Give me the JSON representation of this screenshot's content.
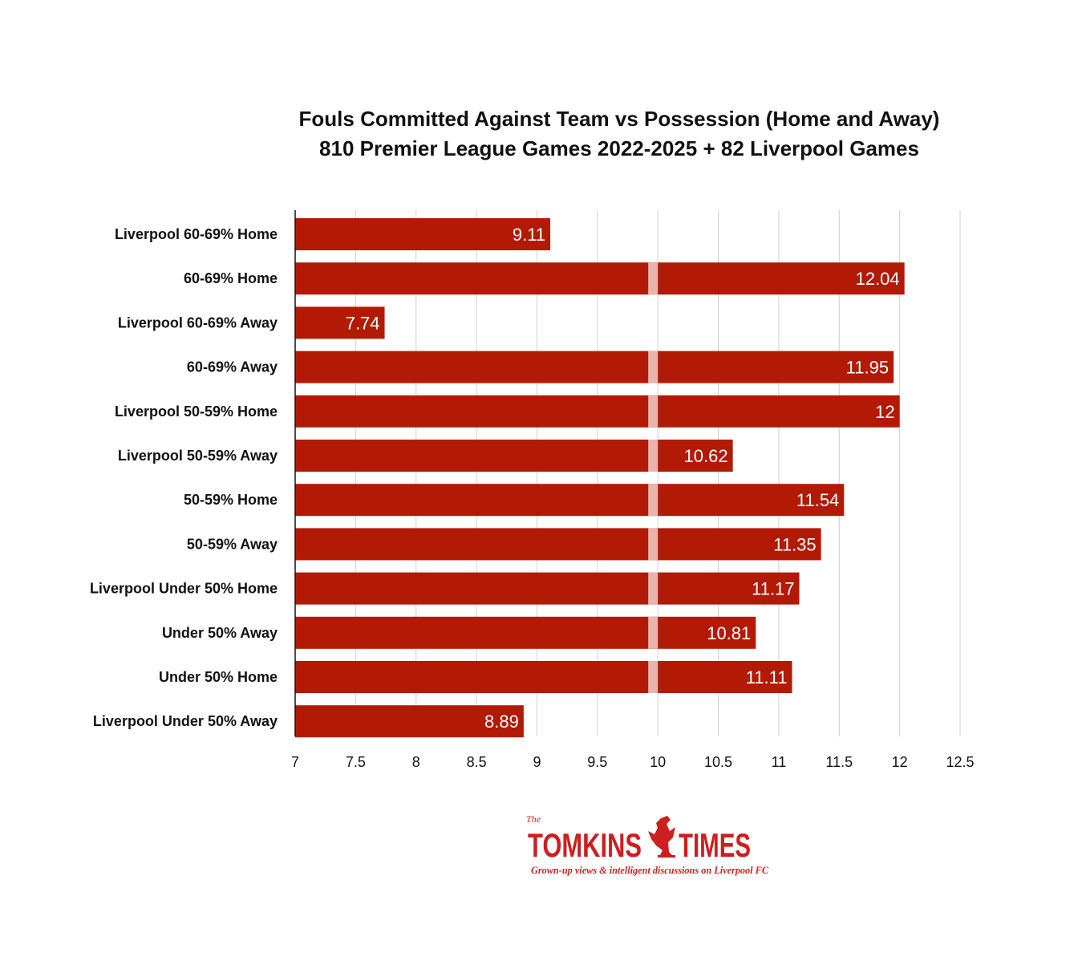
{
  "colors": {
    "bar": "#b31a06",
    "break_band": "#e8b5ad",
    "grid": "#d0d0d0",
    "axis": "#111111",
    "logo": "#cc1f1f"
  },
  "chart_data": {
    "type": "bar",
    "orientation": "horizontal",
    "title": "Fouls Committed Against Team vs Possession (Home and Away)",
    "subtitle": "810 Premier League Games 2022-2025 + 82 Liverpool Games",
    "xlabel": "",
    "ylabel": "",
    "xlim": [
      7,
      12.5
    ],
    "xticks": [
      "7",
      "7.5",
      "8",
      "8.5",
      "9",
      "9.5",
      "10",
      "10.5",
      "11",
      "11.5",
      "12",
      "12.5"
    ],
    "grid": "vertical",
    "axis_break_near": 10,
    "categories": [
      "Liverpool 60-69% Home",
      "60-69% Home",
      "Liverpool 60-69% Away",
      "60-69% Away",
      "Liverpool 50-59% Home",
      "Liverpool 50-59% Away",
      "50-59% Home",
      "50-59% Away",
      "Liverpool Under 50% Home",
      "Under 50% Away",
      "Under 50% Home",
      "Liverpool Under 50% Away"
    ],
    "values": [
      9.11,
      12.04,
      7.74,
      11.95,
      12,
      10.62,
      11.54,
      11.35,
      11.17,
      10.81,
      11.11,
      8.89
    ],
    "value_labels": [
      "9.11",
      "12.04",
      "7.74",
      "11.95",
      "12",
      "10.62",
      "11.54",
      "11.35",
      "11.17",
      "10.81",
      "11.11",
      "8.89"
    ]
  },
  "logo": {
    "the": "The",
    "word_left": "TOMKINS",
    "word_right": "TIMES",
    "tagline": "Grown-up views & intelligent discussions on Liverpool FC",
    "emblem": "liverbird-icon"
  }
}
